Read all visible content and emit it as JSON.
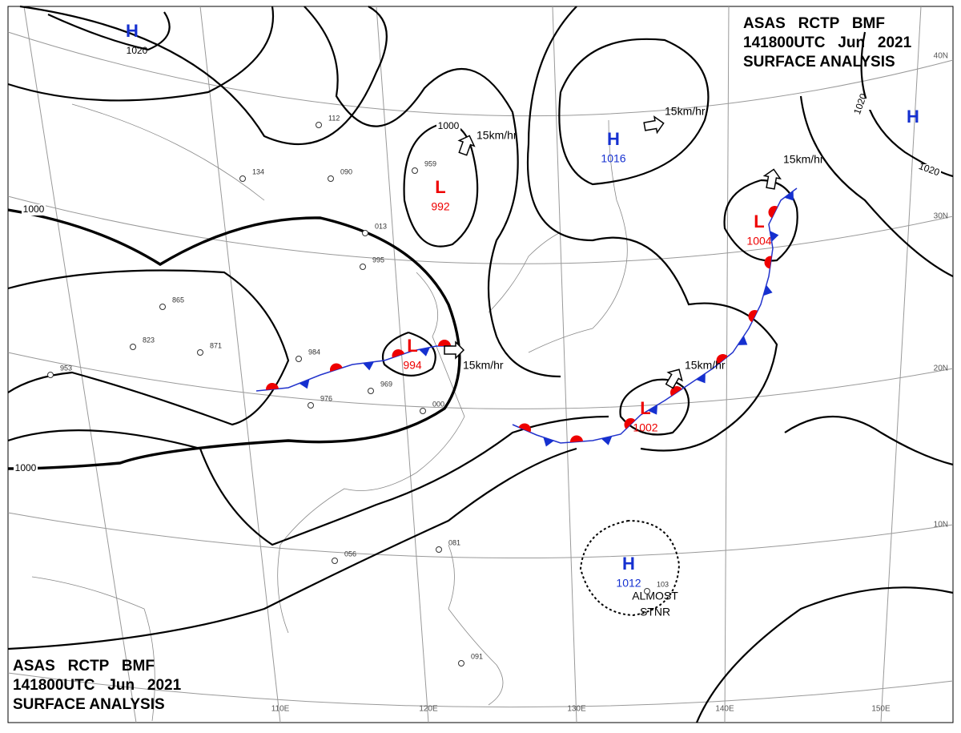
{
  "header": {
    "lines": [
      "ASAS   RCTP   BMF",
      "141800UTC   Jun   2021",
      "SURFACE ANALYSIS"
    ]
  },
  "pressure_centers": [
    {
      "symbol": "H",
      "value": "1020"
    },
    {
      "symbol": "H",
      "value": "1016"
    },
    {
      "symbol": "H"
    },
    {
      "symbol": "L",
      "value": "992"
    },
    {
      "symbol": "L",
      "value": "994"
    },
    {
      "symbol": "L",
      "value": "1004"
    },
    {
      "symbol": "L",
      "value": "1002"
    },
    {
      "symbol": "H",
      "value": "1012"
    }
  ],
  "isobar_labels": [
    "1000",
    "1000",
    "1000",
    "1020",
    "1020"
  ],
  "motion_labels": [
    "15km/hr",
    "15km/hr",
    "15km/hr",
    "15km/hr",
    "15km/hr"
  ],
  "annotation": [
    "ALMOST",
    "STNR"
  ],
  "latitude_labels": [
    "40N",
    "30N",
    "20N",
    "10N"
  ],
  "longitude_labels": [
    "110E",
    "120E",
    "130E",
    "140E",
    "150E"
  ],
  "stations": [
    "959",
    "984",
    "823",
    "871",
    "953",
    "865",
    "976",
    "969",
    "000",
    "013",
    "995",
    "134",
    "090",
    "112",
    "081",
    "091",
    "056",
    "103"
  ]
}
